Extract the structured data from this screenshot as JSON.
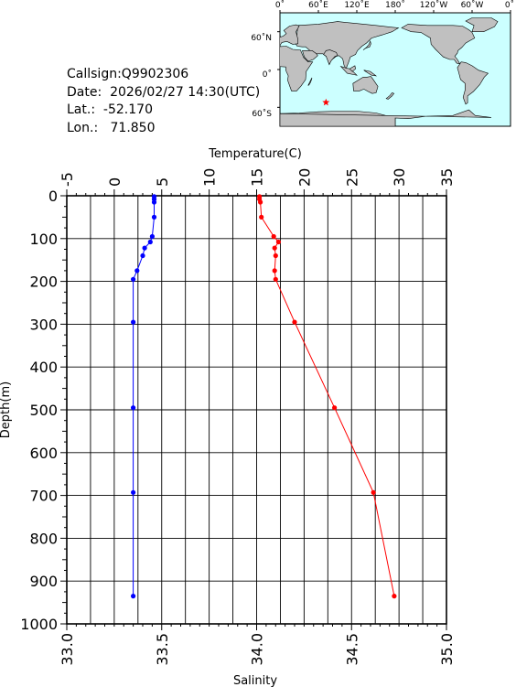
{
  "info": {
    "callsign": "Callsign:Q9902306",
    "date": "Date:  2026/02/27 14:30(UTC)",
    "lat": "Lat.:  -52.170",
    "lon": "Lon.:   71.850"
  },
  "map": {
    "lon_labels": [
      "0˚",
      "60˚E",
      "120˚E",
      "180˚",
      "120˚W",
      "60˚W",
      "0˚"
    ],
    "lat_labels": [
      "60˚N",
      "0˚",
      "60˚S"
    ],
    "ocean_color": "#ccffff",
    "land_color": "#c0c0c0",
    "marker": {
      "lon": 71.85,
      "lat": -52.17,
      "color": "#ff0000",
      "symbol": "star-icon"
    }
  },
  "chart_data": {
    "type": "line",
    "ylabel": "Depth(m)",
    "y_ticks": [
      "0",
      "100",
      "200",
      "300",
      "400",
      "500",
      "600",
      "700",
      "800",
      "900",
      "1000"
    ],
    "ylim": [
      0,
      1000
    ],
    "y_inverted": true,
    "grid": true,
    "top_axis": {
      "label": "Temperature(C)",
      "lim": [
        -5,
        35
      ],
      "ticks": [
        "-5",
        "0",
        "5",
        "10",
        "15",
        "20",
        "25",
        "30",
        "35"
      ]
    },
    "bottom_axis": {
      "label": "Salinity",
      "lim": [
        33.0,
        35.0
      ],
      "ticks": [
        "33.0",
        "33.5",
        "34.0",
        "34.5",
        "35.0"
      ]
    },
    "series": [
      {
        "axis": "top",
        "color": "#ff0000",
        "x": [
          15.3,
          15.3,
          15.4,
          15.5,
          16.8,
          17.3,
          16.9,
          17.0,
          16.9,
          17.0,
          19.0,
          23.2,
          27.3,
          29.5
        ],
        "y": [
          2,
          8,
          15,
          50,
          95,
          108,
          122,
          140,
          175,
          195,
          295,
          495,
          693,
          935
        ]
      },
      {
        "axis": "bottom",
        "color": "#0000ff",
        "x": [
          33.46,
          33.46,
          33.46,
          33.46,
          33.45,
          33.44,
          33.41,
          33.4,
          33.37,
          33.35,
          33.35,
          33.35,
          33.35,
          33.35
        ],
        "y": [
          2,
          8,
          15,
          50,
          95,
          108,
          122,
          140,
          175,
          195,
          295,
          495,
          693,
          935
        ]
      }
    ]
  }
}
